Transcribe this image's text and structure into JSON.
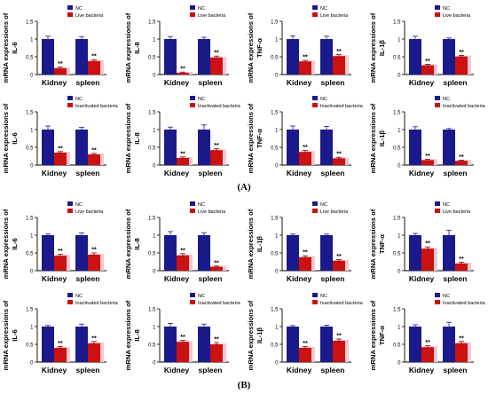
{
  "panel_labels": [
    "(A)",
    "(B)"
  ],
  "legend": {
    "nc": "NC",
    "live": "Live bacteria",
    "inactivated": "Inactivated bacteria"
  },
  "colors": {
    "nc": "#1a1a8c",
    "treated": "#cc1111",
    "shadow": "#f4c7d3",
    "axis": "#000000"
  },
  "significance_mark": "**",
  "chart_data": [
    {
      "type": "bar",
      "ylabel": [
        "mRNA expressions of",
        "IL-6"
      ],
      "categories": [
        "Kidney",
        "spleen"
      ],
      "series": [
        {
          "name": "NC",
          "values": [
            1.0,
            1.0
          ]
        },
        {
          "name": "Live bacteria",
          "values": [
            0.18,
            0.38
          ]
        }
      ],
      "errors": [
        [
          0.08,
          0.07
        ],
        [
          0.03,
          0.04
        ]
      ],
      "ylim": [
        0,
        1.5
      ],
      "yticks": [
        "0",
        "0.5",
        "1",
        "1.5"
      ]
    },
    {
      "type": "bar",
      "ylabel": [
        "mRNA expressions of",
        "IL-8"
      ],
      "categories": [
        "Kidney",
        "spleen"
      ],
      "series": [
        {
          "name": "NC",
          "values": [
            1.0,
            1.0
          ]
        },
        {
          "name": "Live bacteria",
          "values": [
            0.05,
            0.48
          ]
        }
      ],
      "errors": [
        [
          0.07,
          0.05
        ],
        [
          0.02,
          0.04
        ]
      ],
      "ylim": [
        0,
        1.5
      ],
      "yticks": [
        "0",
        "0.5",
        "1",
        "1.5"
      ]
    },
    {
      "type": "bar",
      "ylabel": [
        "mRNA expressions of",
        "TNF-α"
      ],
      "categories": [
        "Kidney",
        "spleen"
      ],
      "series": [
        {
          "name": "NC",
          "values": [
            1.0,
            1.0
          ]
        },
        {
          "name": "Live bacteria",
          "values": [
            0.37,
            0.52
          ]
        }
      ],
      "errors": [
        [
          0.09,
          0.08
        ],
        [
          0.03,
          0.04
        ]
      ],
      "ylim": [
        0,
        1.5
      ],
      "yticks": [
        "0",
        "0.5",
        "1",
        "1.5"
      ]
    },
    {
      "type": "bar",
      "ylabel": [
        "mRNA expressions of",
        "IL-1β"
      ],
      "categories": [
        "Kidney",
        "spleen"
      ],
      "series": [
        {
          "name": "NC",
          "values": [
            1.0,
            1.0
          ]
        },
        {
          "name": "Live bacteria",
          "values": [
            0.26,
            0.51
          ]
        }
      ],
      "errors": [
        [
          0.08,
          0.03
        ],
        [
          0.03,
          0.03
        ]
      ],
      "ylim": [
        0,
        1.5
      ],
      "yticks": [
        "0",
        "0.5",
        "1",
        "1.5"
      ]
    },
    {
      "type": "bar",
      "ylabel": [
        "mRNA expressions of",
        "IL-6"
      ],
      "categories": [
        "Kidney",
        "spleen"
      ],
      "series": [
        {
          "name": "NC",
          "values": [
            1.0,
            1.0
          ]
        },
        {
          "name": "Inactivated bacteria",
          "values": [
            0.35,
            0.3
          ]
        }
      ],
      "errors": [
        [
          0.1,
          0.06
        ],
        [
          0.03,
          0.03
        ]
      ],
      "ylim": [
        0,
        1.5
      ],
      "yticks": [
        "0",
        "0.5",
        "1",
        "1.5"
      ]
    },
    {
      "type": "bar",
      "ylabel": [
        "mRNA expressions of",
        "IL-8"
      ],
      "categories": [
        "Kidney",
        "spleen"
      ],
      "series": [
        {
          "name": "NC",
          "values": [
            1.0,
            1.0
          ]
        },
        {
          "name": "Inactivated bacteria",
          "values": [
            0.2,
            0.42
          ]
        }
      ],
      "errors": [
        [
          0.07,
          0.13
        ],
        [
          0.03,
          0.04
        ]
      ],
      "ylim": [
        0,
        1.5
      ],
      "yticks": [
        "0",
        "0.5",
        "1",
        "1.5"
      ]
    },
    {
      "type": "bar",
      "ylabel": [
        "mRNA expressions of",
        "TNF-α"
      ],
      "categories": [
        "Kidney",
        "spleen"
      ],
      "series": [
        {
          "name": "NC",
          "values": [
            1.0,
            1.0
          ]
        },
        {
          "name": "Inactivated bacteria",
          "values": [
            0.37,
            0.19
          ]
        }
      ],
      "errors": [
        [
          0.1,
          0.09
        ],
        [
          0.04,
          0.03
        ]
      ],
      "ylim": [
        0,
        1.5
      ],
      "yticks": [
        "0",
        "0.5",
        "1",
        "1.5"
      ]
    },
    {
      "type": "bar",
      "ylabel": [
        "mRNA expressions of",
        "IL-1β"
      ],
      "categories": [
        "Kidney",
        "spleen"
      ],
      "series": [
        {
          "name": "NC",
          "values": [
            1.0,
            1.0
          ]
        },
        {
          "name": "Inactivated bacteria",
          "values": [
            0.14,
            0.12
          ]
        }
      ],
      "errors": [
        [
          0.08,
          0.03
        ],
        [
          0.02,
          0.02
        ]
      ],
      "ylim": [
        0,
        1.5
      ],
      "yticks": [
        "0",
        "0.5",
        "1",
        "1.5"
      ]
    },
    {
      "type": "bar",
      "ylabel": [
        "mRNA expressions of",
        "IL-6"
      ],
      "categories": [
        "Kidney",
        "spleen"
      ],
      "series": [
        {
          "name": "NC",
          "values": [
            1.0,
            1.0
          ]
        },
        {
          "name": "Live bacteria",
          "values": [
            0.42,
            0.45
          ]
        }
      ],
      "errors": [
        [
          0.03,
          0.06
        ],
        [
          0.04,
          0.05
        ]
      ],
      "ylim": [
        0,
        1.5
      ],
      "yticks": [
        "0",
        "0.5",
        "1",
        "1.5"
      ]
    },
    {
      "type": "bar",
      "ylabel": [
        "mRNA expressions of",
        "IL-8"
      ],
      "categories": [
        "Kidney",
        "spleen"
      ],
      "series": [
        {
          "name": "NC",
          "values": [
            1.0,
            1.0
          ]
        },
        {
          "name": "Live bacteria",
          "values": [
            0.43,
            0.11
          ]
        }
      ],
      "errors": [
        [
          0.1,
          0.07
        ],
        [
          0.05,
          0.02
        ]
      ],
      "ylim": [
        0,
        1.5
      ],
      "yticks": [
        "0",
        "0.5",
        "1",
        "1.5"
      ]
    },
    {
      "type": "bar",
      "ylabel": [
        "mRNA expressions of",
        "IL-1β"
      ],
      "categories": [
        "Kidney",
        "spleen"
      ],
      "series": [
        {
          "name": "NC",
          "values": [
            1.0,
            1.0
          ]
        },
        {
          "name": "Live bacteria",
          "values": [
            0.38,
            0.28
          ]
        }
      ],
      "errors": [
        [
          0.03,
          0.03
        ],
        [
          0.04,
          0.03
        ]
      ],
      "ylim": [
        0,
        1.5
      ],
      "yticks": [
        "0",
        "0.5",
        "1",
        "1.5"
      ]
    },
    {
      "type": "bar",
      "ylabel": [
        "mRNA expressions of",
        "TNF-α"
      ],
      "categories": [
        "Kidney",
        "spleen"
      ],
      "series": [
        {
          "name": "NC",
          "values": [
            1.0,
            1.0
          ]
        },
        {
          "name": "Live bacteria",
          "values": [
            0.62,
            0.2
          ]
        }
      ],
      "errors": [
        [
          0.05,
          0.14
        ],
        [
          0.05,
          0.04
        ]
      ],
      "ylim": [
        0,
        1.5
      ],
      "yticks": [
        "0",
        "0.5",
        "1",
        "1.5"
      ]
    },
    {
      "type": "bar",
      "ylabel": [
        "mRNA expressions of",
        "IL-6"
      ],
      "categories": [
        "Kidney",
        "spleen"
      ],
      "series": [
        {
          "name": "NC",
          "values": [
            1.0,
            1.0
          ]
        },
        {
          "name": "Inactivated bacteria",
          "values": [
            0.4,
            0.53
          ]
        }
      ],
      "errors": [
        [
          0.03,
          0.07
        ],
        [
          0.04,
          0.05
        ]
      ],
      "ylim": [
        0,
        1.5
      ],
      "yticks": [
        "0",
        "0.5",
        "1",
        "1.5"
      ]
    },
    {
      "type": "bar",
      "ylabel": [
        "mRNA expressions of",
        "IL-8"
      ],
      "categories": [
        "Kidney",
        "spleen"
      ],
      "series": [
        {
          "name": "NC",
          "values": [
            1.0,
            1.0
          ]
        },
        {
          "name": "Inactivated bacteria",
          "values": [
            0.57,
            0.5
          ]
        }
      ],
      "errors": [
        [
          0.09,
          0.07
        ],
        [
          0.04,
          0.05
        ]
      ],
      "ylim": [
        0,
        1.5
      ],
      "yticks": [
        "0",
        "0.5",
        "1",
        "1.5"
      ]
    },
    {
      "type": "bar",
      "ylabel": [
        "mRNA expressions of",
        "IL-1β"
      ],
      "categories": [
        "Kidney",
        "spleen"
      ],
      "series": [
        {
          "name": "NC",
          "values": [
            1.0,
            1.0
          ]
        },
        {
          "name": "Inactivated bacteria",
          "values": [
            0.4,
            0.6
          ]
        }
      ],
      "errors": [
        [
          0.03,
          0.04
        ],
        [
          0.04,
          0.05
        ]
      ],
      "ylim": [
        0,
        1.5
      ],
      "yticks": [
        "0",
        "0.5",
        "1",
        "1.5"
      ]
    },
    {
      "type": "bar",
      "ylabel": [
        "mRNA expressions of",
        "TNF-α"
      ],
      "categories": [
        "Kidney",
        "spleen"
      ],
      "series": [
        {
          "name": "NC",
          "values": [
            1.0,
            1.0
          ]
        },
        {
          "name": "Inactivated bacteria",
          "values": [
            0.42,
            0.53
          ]
        }
      ],
      "errors": [
        [
          0.05,
          0.12
        ],
        [
          0.04,
          0.05
        ]
      ],
      "ylim": [
        0,
        1.5
      ],
      "yticks": [
        "0",
        "0.5",
        "1",
        "1.5"
      ]
    }
  ]
}
